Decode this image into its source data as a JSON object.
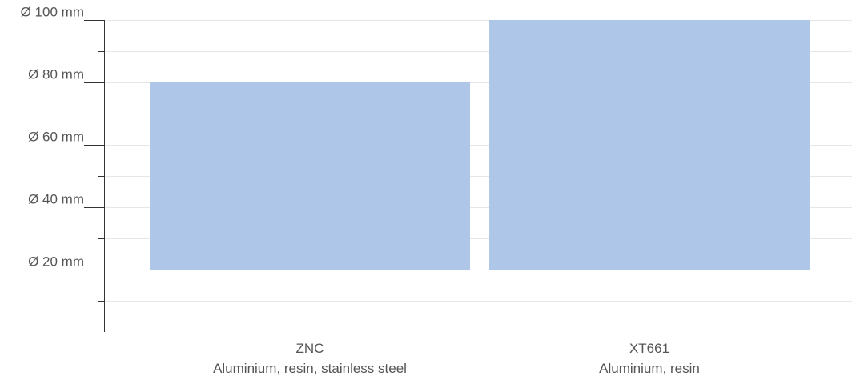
{
  "chart_data": {
    "type": "bar",
    "orientation": "vertical",
    "range_bars": true,
    "title": "",
    "xlabel": "",
    "ylabel": "",
    "ylim": [
      0,
      100
    ],
    "major_ticks": [
      20,
      40,
      60,
      80,
      100
    ],
    "minor_ticks": [
      10,
      30,
      50,
      70,
      90
    ],
    "tick_labels": [
      "Ø 20 mm",
      "Ø 40 mm",
      "Ø 60 mm",
      "Ø 80 mm",
      "Ø 100 mm"
    ],
    "grid": true,
    "legend": "none",
    "bar_color": "#aec6e8",
    "categories": [
      {
        "name": "ZNC",
        "subtitle": "Aluminium, resin, stainless steel"
      },
      {
        "name": "XT661",
        "subtitle": "Aluminium, resin"
      }
    ],
    "series": [
      {
        "low": [
          20,
          20
        ],
        "high": [
          80,
          100
        ]
      }
    ]
  }
}
